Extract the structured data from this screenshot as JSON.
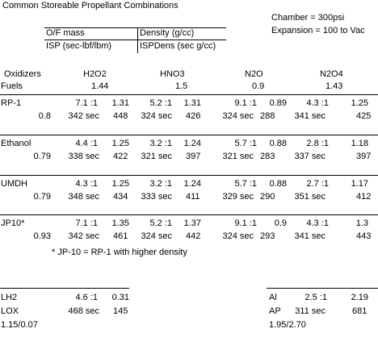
{
  "header": {
    "title": "Common Storeable Propellant Combinations",
    "conditions": [
      "Chamber = 300psi",
      "Expansion = 100 to Vac"
    ],
    "legend": [
      [
        "O/F mass",
        "Density (g/cc)"
      ],
      [
        "ISP (sec-lbf/lbm)",
        "ISPDens (sec g/cc)"
      ]
    ]
  },
  "table": {
    "oxidizers_label": "Oxidizers",
    "fuels_label": "Fuels",
    "oxidizers": [
      {
        "name": "H2O2",
        "density": "1.44"
      },
      {
        "name": "HNO3",
        "density": "1.5"
      },
      {
        "name": "N2O",
        "density": "0.9"
      },
      {
        "name": "N2O4",
        "density": "1.43"
      }
    ],
    "rows": [
      {
        "fuel": "RP-1",
        "density": "0.8",
        "cells": [
          {
            "ratio": "7.1 :1",
            "density": "1.31",
            "isp": "342 sec",
            "ispdens": "448"
          },
          {
            "ratio": "5.2 :1",
            "density": "1.31",
            "isp": "324 sec",
            "ispdens": "426"
          },
          {
            "ratio": "9.1 :1",
            "density": "0.89",
            "isp": "324 sec",
            "ispdens": "288"
          },
          {
            "ratio": "4.3 :1",
            "density": "1.25",
            "isp": "341 sec",
            "ispdens": "425"
          }
        ]
      },
      {
        "fuel": "Ethanol",
        "density": "0.79",
        "cells": [
          {
            "ratio": "4.4 :1",
            "density": "1.25",
            "isp": "338 sec",
            "ispdens": "422"
          },
          {
            "ratio": "3.2 :1",
            "density": "1.24",
            "isp": "321 sec",
            "ispdens": "397"
          },
          {
            "ratio": "5.7 :1",
            "density": "0.88",
            "isp": "321 sec",
            "ispdens": "283"
          },
          {
            "ratio": "2.8 :1",
            "density": "1.18",
            "isp": "337 sec",
            "ispdens": "397"
          }
        ]
      },
      {
        "fuel": "UMDH",
        "density": "0.79",
        "cells": [
          {
            "ratio": "4.3 :1",
            "density": "1.25",
            "isp": "348 sec",
            "ispdens": "434"
          },
          {
            "ratio": "3.2 :1",
            "density": "1.24",
            "isp": "333 sec",
            "ispdens": "411"
          },
          {
            "ratio": "5.7 :1",
            "density": "0.88",
            "isp": "329 sec",
            "ispdens": "290"
          },
          {
            "ratio": "2.7 :1",
            "density": "1.17",
            "isp": "351 sec",
            "ispdens": "412"
          }
        ]
      },
      {
        "fuel": "JP10*",
        "density": "0.93",
        "cells": [
          {
            "ratio": "7.1 :1",
            "density": "1.35",
            "isp": "342 sec",
            "ispdens": "461"
          },
          {
            "ratio": "5.2 :1",
            "density": "1.37",
            "isp": "324 sec",
            "ispdens": "442"
          },
          {
            "ratio": "9.1 :1",
            "density": "0.9",
            "isp": "324 sec",
            "ispdens": "293"
          },
          {
            "ratio": "4.3 :1",
            "density": "1.3",
            "isp": "341 sec",
            "ispdens": "443"
          }
        ]
      }
    ],
    "note": "* JP-10 = RP-1 with higher density"
  },
  "extras": [
    {
      "fuel": "LH2",
      "oxidizer": "LOX",
      "ratio": "4.6 :1",
      "density": "0.31",
      "isp": "468 sec",
      "ispdens": "145",
      "densities": "1.15/0.07"
    },
    {
      "fuel": "Al",
      "oxidizer": "AP",
      "ratio": "2.5 :1",
      "density": "2.19",
      "isp": "311 sec",
      "ispdens": "681",
      "densities": "1.95/2.70"
    }
  ]
}
